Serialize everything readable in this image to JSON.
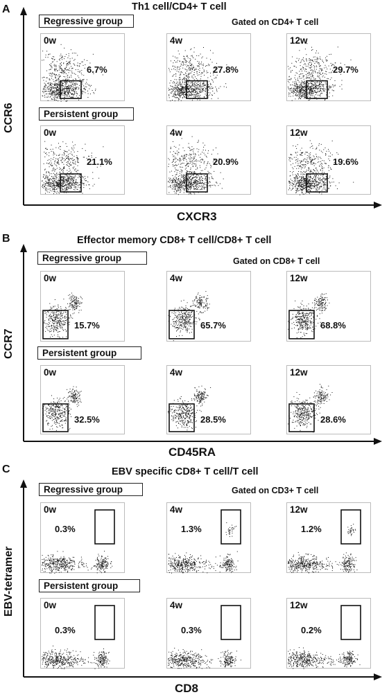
{
  "panels": [
    {
      "letter": "A",
      "title": "Th1 cell/CD4+ T cell",
      "gated_on": "Gated on CD4+ T cell",
      "x_axis": "CXCR3",
      "y_axis": "CCR6",
      "groups": [
        {
          "label": "Regressive group",
          "plots": [
            {
              "timepoint": "0w",
              "percent": "6.7%"
            },
            {
              "timepoint": "4w",
              "percent": "27.8%"
            },
            {
              "timepoint": "12w",
              "percent": "29.7%"
            }
          ]
        },
        {
          "label": "Persistent group",
          "plots": [
            {
              "timepoint": "0w",
              "percent": "21.1%"
            },
            {
              "timepoint": "4w",
              "percent": "20.9%"
            },
            {
              "timepoint": "12w",
              "percent": "19.6%"
            }
          ]
        }
      ]
    },
    {
      "letter": "B",
      "title": "Effector memory CD8+ T cell/CD8+ T cell",
      "gated_on": "Gated on CD8+ T cell",
      "x_axis": "CD45RA",
      "y_axis": "CCR7",
      "groups": [
        {
          "label": "Regressive group",
          "plots": [
            {
              "timepoint": "0w",
              "percent": "15.7%"
            },
            {
              "timepoint": "4w",
              "percent": "65.7%"
            },
            {
              "timepoint": "12w",
              "percent": "68.8%"
            }
          ]
        },
        {
          "label": "Persistent group",
          "plots": [
            {
              "timepoint": "0w",
              "percent": "32.5%"
            },
            {
              "timepoint": "4w",
              "percent": "28.5%"
            },
            {
              "timepoint": "12w",
              "percent": "28.6%"
            }
          ]
        }
      ]
    },
    {
      "letter": "C",
      "title": "EBV specific CD8+ T cell/T cell",
      "gated_on": "Gated on CD3+ T cell",
      "x_axis": "CD8",
      "y_axis": "EBV-tetramer",
      "groups": [
        {
          "label": "Regressive group",
          "plots": [
            {
              "timepoint": "0w",
              "percent": "0.3%"
            },
            {
              "timepoint": "4w",
              "percent": "1.3%"
            },
            {
              "timepoint": "12w",
              "percent": "1.2%"
            }
          ]
        },
        {
          "label": "Persistent group",
          "plots": [
            {
              "timepoint": "0w",
              "percent": "0.3%"
            },
            {
              "timepoint": "4w",
              "percent": "0.3%"
            },
            {
              "timepoint": "12w",
              "percent": "0.2%"
            }
          ]
        }
      ]
    }
  ]
}
